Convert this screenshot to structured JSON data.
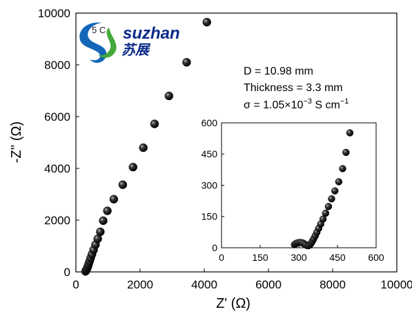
{
  "chart_data": [
    {
      "type": "scatter",
      "xlabel": "Z' (Ω)",
      "ylabel": "-Z'' (Ω)",
      "xlim": [
        0,
        10000
      ],
      "ylim": [
        0,
        10000
      ],
      "xticks": [
        0,
        2000,
        4000,
        6000,
        8000,
        10000
      ],
      "yticks": [
        0,
        2000,
        4000,
        6000,
        8000,
        10000
      ],
      "xtick_labels": [
        "0",
        "2000",
        "4000",
        "6000",
        "8000",
        "10000"
      ],
      "ytick_labels": [
        "0",
        "2000",
        "4000",
        "6000",
        "8000",
        "10000"
      ],
      "grid": false,
      "marker_color": "#000000",
      "annotations": [
        "D = 10.98 mm",
        "Thickness = 3.3 mm"
      ],
      "conductivity_annotation": {
        "prefix": "σ = 1.05×10",
        "exponent": "−3",
        "units_a": " S cm",
        "units_exp": "−1"
      },
      "points": [
        {
          "x": 300,
          "y": 20
        },
        {
          "x": 320,
          "y": 60
        },
        {
          "x": 340,
          "y": 110
        },
        {
          "x": 360,
          "y": 170
        },
        {
          "x": 380,
          "y": 240
        },
        {
          "x": 400,
          "y": 320
        },
        {
          "x": 430,
          "y": 420
        },
        {
          "x": 460,
          "y": 540
        },
        {
          "x": 500,
          "y": 680
        },
        {
          "x": 550,
          "y": 850
        },
        {
          "x": 610,
          "y": 1050
        },
        {
          "x": 680,
          "y": 1280
        },
        {
          "x": 760,
          "y": 1550
        },
        {
          "x": 850,
          "y": 1980
        },
        {
          "x": 980,
          "y": 2360
        },
        {
          "x": 1180,
          "y": 2810
        },
        {
          "x": 1460,
          "y": 3370
        },
        {
          "x": 1780,
          "y": 4050
        },
        {
          "x": 2100,
          "y": 4800
        },
        {
          "x": 2450,
          "y": 5720
        },
        {
          "x": 2900,
          "y": 6800
        },
        {
          "x": 3450,
          "y": 8100
        },
        {
          "x": 4080,
          "y": 9650
        }
      ]
    },
    {
      "type": "scatter",
      "inset": true,
      "xlim": [
        0,
        600
      ],
      "ylim": [
        0,
        600
      ],
      "xticks": [
        0,
        150,
        300,
        450,
        600
      ],
      "yticks": [
        0,
        150,
        300,
        450,
        600
      ],
      "xtick_labels": [
        "0",
        "150",
        "300",
        "450",
        "600"
      ],
      "ytick_labels": [
        "0",
        "150",
        "300",
        "450",
        "600"
      ],
      "grid": false,
      "marker_color": "#000000",
      "points": [
        {
          "x": 283,
          "y": 15
        },
        {
          "x": 288,
          "y": 20
        },
        {
          "x": 294,
          "y": 23
        },
        {
          "x": 300,
          "y": 25
        },
        {
          "x": 306,
          "y": 25
        },
        {
          "x": 312,
          "y": 24
        },
        {
          "x": 318,
          "y": 21
        },
        {
          "x": 323,
          "y": 17
        },
        {
          "x": 328,
          "y": 13
        },
        {
          "x": 333,
          "y": 10
        },
        {
          "x": 338,
          "y": 10
        },
        {
          "x": 343,
          "y": 14
        },
        {
          "x": 348,
          "y": 22
        },
        {
          "x": 353,
          "y": 32
        },
        {
          "x": 358,
          "y": 44
        },
        {
          "x": 364,
          "y": 58
        },
        {
          "x": 370,
          "y": 74
        },
        {
          "x": 377,
          "y": 93
        },
        {
          "x": 385,
          "y": 114
        },
        {
          "x": 394,
          "y": 138
        },
        {
          "x": 404,
          "y": 166
        },
        {
          "x": 415,
          "y": 198
        },
        {
          "x": 427,
          "y": 235
        },
        {
          "x": 440,
          "y": 273
        },
        {
          "x": 455,
          "y": 317
        },
        {
          "x": 470,
          "y": 380
        },
        {
          "x": 483,
          "y": 458
        },
        {
          "x": 498,
          "y": 552
        }
      ]
    }
  ],
  "watermark": {
    "text_en": "suzhan",
    "text_cn": "苏展",
    "badge_text": "5 C"
  }
}
